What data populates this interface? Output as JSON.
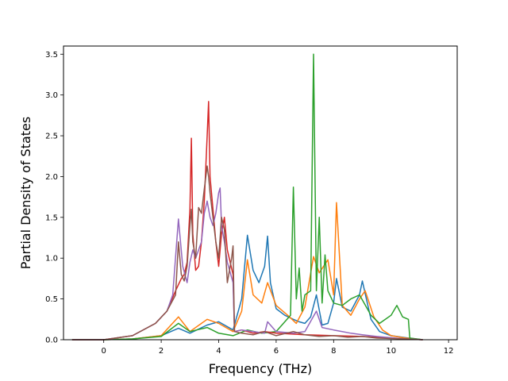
{
  "chart_data": {
    "type": "line",
    "xlabel": "Frequency (THz)",
    "ylabel": "Partial Density of States",
    "xlim": [
      -1.4,
      12.3
    ],
    "ylim": [
      0,
      3.6
    ],
    "xticks": [
      0,
      2,
      4,
      6,
      8,
      10,
      12
    ],
    "yticks": [
      0.0,
      0.5,
      1.0,
      1.5,
      2.0,
      2.5,
      3.0,
      3.5
    ],
    "grid": false,
    "series": [
      {
        "color": "#1f77b4",
        "x": [
          -1.1,
          0,
          1,
          2,
          2.6,
          3,
          3.6,
          4,
          4.5,
          4.8,
          5.0,
          5.2,
          5.4,
          5.6,
          5.7,
          5.8,
          6.0,
          6.3,
          6.6,
          6.8,
          7.0,
          7.2,
          7.4,
          7.6,
          7.8,
          8.0,
          8.1,
          8.3,
          8.6,
          8.9,
          9.0,
          9.3,
          9.6,
          10,
          10.6,
          11.1
        ],
        "y": [
          0,
          0,
          0.01,
          0.05,
          0.14,
          0.08,
          0.18,
          0.22,
          0.12,
          0.5,
          1.28,
          0.85,
          0.7,
          0.9,
          1.27,
          0.7,
          0.38,
          0.3,
          0.25,
          0.22,
          0.2,
          0.28,
          0.55,
          0.18,
          0.2,
          0.45,
          0.75,
          0.4,
          0.35,
          0.55,
          0.72,
          0.25,
          0.1,
          0.05,
          0.02,
          0
        ]
      },
      {
        "color": "#ff7f0e",
        "x": [
          -1.1,
          0,
          1,
          2,
          2.6,
          3,
          3.6,
          4,
          4.5,
          4.8,
          5.0,
          5.2,
          5.5,
          5.7,
          6.0,
          6.4,
          6.7,
          7.0,
          7.3,
          7.5,
          7.8,
          8.0,
          8.1,
          8.3,
          8.6,
          8.9,
          9.1,
          9.4,
          9.7,
          10,
          10.5,
          11.1
        ],
        "y": [
          0,
          0,
          0.01,
          0.05,
          0.28,
          0.1,
          0.25,
          0.2,
          0.1,
          0.35,
          0.98,
          0.55,
          0.45,
          0.7,
          0.42,
          0.3,
          0.2,
          0.4,
          1.02,
          0.82,
          0.98,
          0.55,
          1.68,
          0.42,
          0.3,
          0.5,
          0.6,
          0.28,
          0.12,
          0.05,
          0.02,
          0
        ]
      },
      {
        "color": "#2ca02c",
        "x": [
          -1.1,
          0,
          1,
          2,
          2.6,
          3,
          3.6,
          4,
          4.5,
          5,
          5.5,
          6,
          6.5,
          6.6,
          6.7,
          6.8,
          6.9,
          7.0,
          7.2,
          7.3,
          7.4,
          7.5,
          7.6,
          7.7,
          7.8,
          8.0,
          8.3,
          8.6,
          8.9,
          9.3,
          9.6,
          9.8,
          10.0,
          10.2,
          10.4,
          10.6,
          10.65,
          11.1
        ],
        "y": [
          0,
          0,
          0.01,
          0.04,
          0.2,
          0.1,
          0.15,
          0.08,
          0.05,
          0.12,
          0.08,
          0.1,
          0.3,
          1.87,
          0.5,
          0.88,
          0.35,
          0.55,
          0.6,
          3.5,
          0.6,
          1.5,
          0.45,
          1.04,
          0.6,
          0.45,
          0.42,
          0.5,
          0.55,
          0.3,
          0.2,
          0.25,
          0.3,
          0.42,
          0.28,
          0.25,
          0.02,
          0
        ]
      },
      {
        "color": "#d62728",
        "x": [
          -1.1,
          0,
          1,
          1.8,
          2.2,
          2.5,
          2.7,
          2.8,
          2.9,
          3.0,
          3.05,
          3.1,
          3.2,
          3.3,
          3.4,
          3.5,
          3.6,
          3.65,
          3.7,
          3.8,
          3.9,
          4.0,
          4.1,
          4.2,
          4.3,
          4.5,
          4.55,
          4.8,
          5.2,
          5.6,
          6,
          7,
          8,
          9,
          9.5,
          10.5,
          11.1
        ],
        "y": [
          0,
          0,
          0.05,
          0.2,
          0.35,
          0.6,
          0.75,
          0.8,
          0.95,
          1.6,
          2.47,
          1.3,
          0.85,
          0.9,
          1.2,
          1.7,
          2.5,
          2.92,
          2.0,
          1.6,
          1.2,
          0.9,
          1.3,
          1.5,
          1.1,
          0.8,
          0.1,
          0.12,
          0.08,
          0.1,
          0.08,
          0.06,
          0.05,
          0.04,
          0.03,
          0.01,
          0
        ]
      },
      {
        "color": "#9467bd",
        "x": [
          -1.1,
          0,
          1,
          1.8,
          2.2,
          2.4,
          2.6,
          2.75,
          2.9,
          3.0,
          3.1,
          3.2,
          3.4,
          3.5,
          3.6,
          3.7,
          3.8,
          3.9,
          4.0,
          4.05,
          4.1,
          4.2,
          4.3,
          4.5,
          4.55,
          4.8,
          5.2,
          5.6,
          5.7,
          6.0,
          6.6,
          7.0,
          7.4,
          7.6,
          8.0,
          8.3,
          8.6,
          9.0,
          9.5,
          10.5,
          11.1
        ],
        "y": [
          0,
          0,
          0.05,
          0.2,
          0.35,
          0.55,
          1.48,
          0.9,
          0.7,
          0.95,
          1.1,
          1.0,
          1.2,
          1.55,
          1.7,
          1.5,
          1.4,
          1.55,
          1.8,
          1.86,
          1.4,
          1.2,
          0.95,
          0.7,
          0.1,
          0.12,
          0.1,
          0.08,
          0.22,
          0.1,
          0.08,
          0.1,
          0.35,
          0.15,
          0.12,
          0.1,
          0.08,
          0.06,
          0.04,
          0.01,
          0
        ]
      },
      {
        "color": "#8c564b",
        "x": [
          -1.1,
          0,
          1,
          1.8,
          2.2,
          2.5,
          2.6,
          2.7,
          2.8,
          2.9,
          3.0,
          3.05,
          3.1,
          3.2,
          3.3,
          3.4,
          3.5,
          3.6,
          3.65,
          3.7,
          3.8,
          3.9,
          4.0,
          4.1,
          4.2,
          4.3,
          4.45,
          4.5,
          4.55,
          4.8,
          5.2,
          5.6,
          6.0,
          6.6,
          7.0,
          7.5,
          8.0,
          8.5,
          9.0,
          9.5,
          10.5,
          11.1
        ],
        "y": [
          0,
          0,
          0.05,
          0.2,
          0.35,
          0.55,
          1.2,
          0.8,
          0.72,
          0.9,
          1.4,
          1.6,
          1.2,
          1.0,
          1.62,
          1.55,
          1.85,
          2.13,
          2.0,
          1.8,
          1.5,
          1.2,
          1.0,
          1.5,
          1.35,
          0.7,
          1.0,
          1.15,
          0.1,
          0.08,
          0.06,
          0.1,
          0.05,
          0.1,
          0.06,
          0.04,
          0.05,
          0.03,
          0.04,
          0.02,
          0.01,
          0
        ]
      }
    ]
  }
}
